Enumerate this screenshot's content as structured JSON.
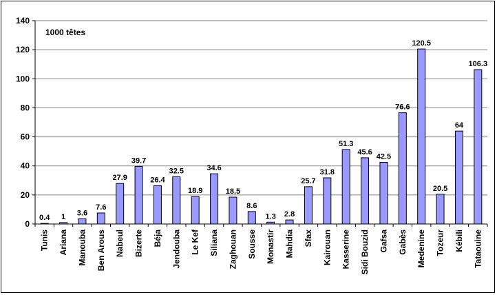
{
  "chart_data": {
    "type": "bar",
    "annotation": "1000 têtes",
    "categories": [
      "Tunis",
      "Ariana",
      "Manouba",
      "Ben Arous",
      "Nabeul",
      "Bizerte",
      "Béja",
      "Jendouba",
      "Le Kef",
      "Siliana",
      "Zaghouan",
      "Sousse",
      "Monastir",
      "Mahdia",
      "Sfax",
      "Kairouan",
      "Kasserine",
      "Sidi Bouzid",
      "Gafsa",
      "Gabès",
      "Medenine",
      "Tozeur",
      "Kébili",
      "Tataouine"
    ],
    "values": [
      0.4,
      1,
      3.6,
      7.6,
      27.9,
      39.7,
      26.4,
      32.5,
      18.9,
      34.6,
      18.5,
      8.6,
      1.3,
      2.8,
      25.7,
      31.8,
      51.3,
      45.6,
      42.5,
      76.6,
      120.5,
      20.5,
      64,
      106.3
    ],
    "data_labels": [
      "0.4",
      "1",
      "3.6",
      "7.6",
      "27.9",
      "39.7",
      "26.4",
      "32.5",
      "18.9",
      "34.6",
      "18.5",
      "8.6",
      "1.3",
      "2.8",
      "25.7",
      "31.8",
      "51.3",
      "45.6",
      "42.5",
      "76.6",
      "120.5",
      "20.5",
      "64",
      "106.3"
    ],
    "ylim": [
      0,
      140
    ],
    "yticks": [
      "0",
      "20",
      "40",
      "60",
      "80",
      "100",
      "120",
      "140"
    ],
    "grid": true,
    "bar_color": "#9999ff",
    "bar_edge_color": "#000000",
    "grid_color": "#808080"
  }
}
